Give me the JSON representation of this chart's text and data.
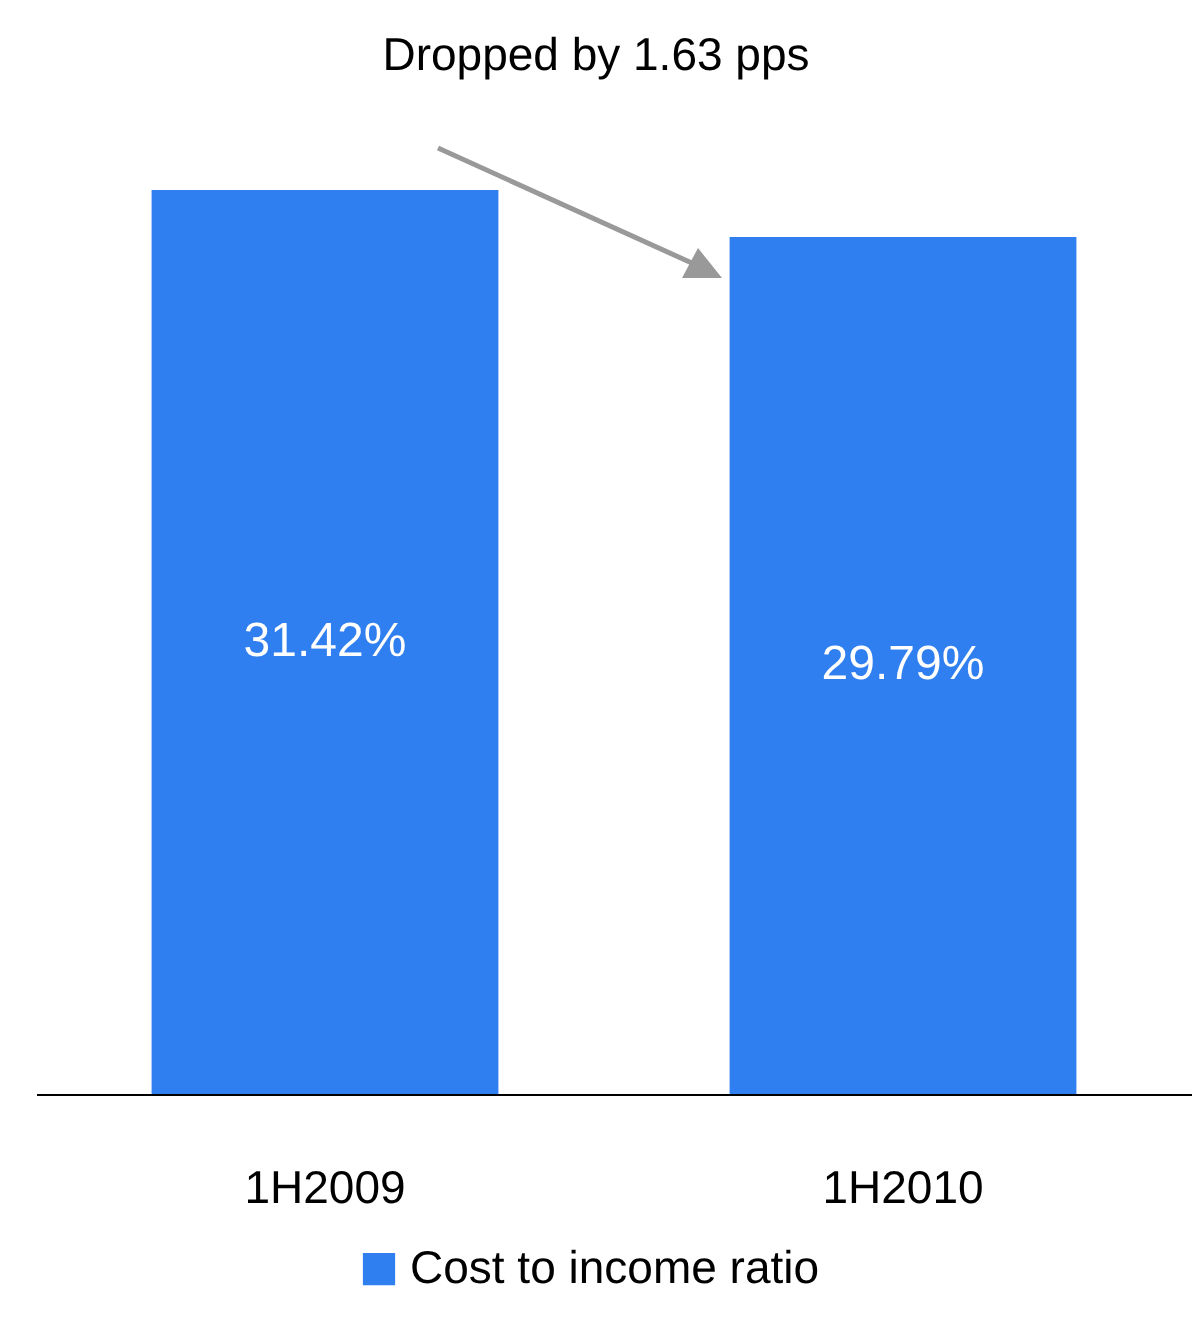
{
  "chart_data": {
    "type": "bar",
    "categories": [
      "1H2009",
      "1H2010"
    ],
    "series": [
      {
        "name": "Cost to income ratio",
        "color": "#2f7ff0",
        "values": [
          31.42,
          29.79
        ],
        "value_labels": [
          "31.42%",
          "29.79%"
        ]
      }
    ],
    "legend": "bottom",
    "annotations": [
      "Dropped by 1.63 pps"
    ]
  }
}
